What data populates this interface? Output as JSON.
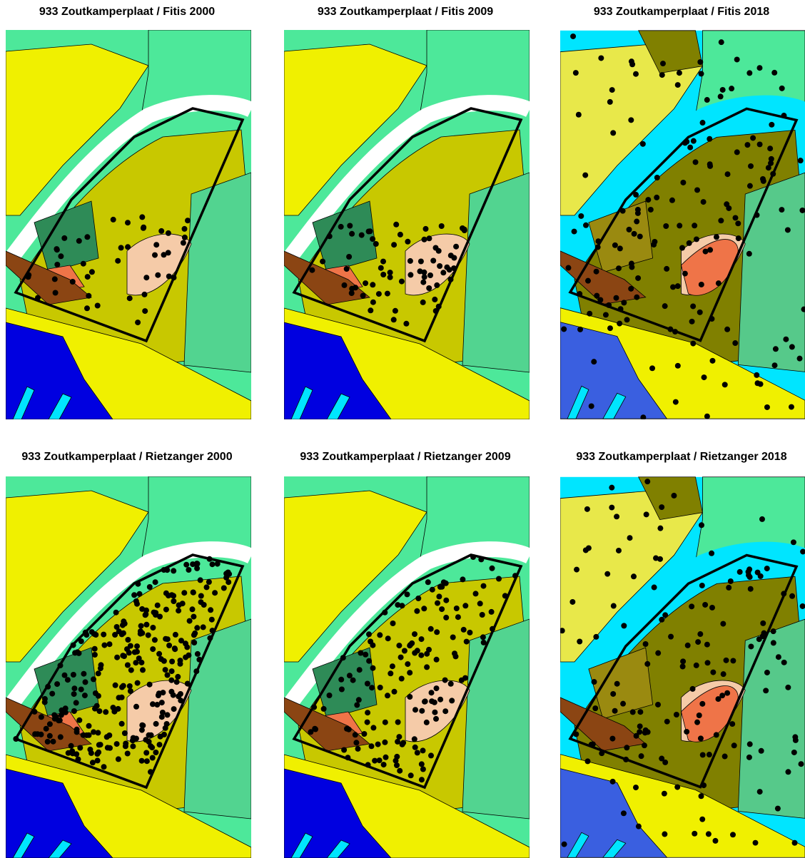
{
  "panels": [
    {
      "title": "933 Zoutkamperplaat / Fitis 2000"
    },
    {
      "title": "933 Zoutkamperplaat / Fitis 2009"
    },
    {
      "title": "933 Zoutkamperplaat / Fitis 2018"
    },
    {
      "title": "933 Zoutkamperplaat / Rietzanger 2000"
    },
    {
      "title": "933 Zoutkamperplaat / Rietzanger 2009"
    },
    {
      "title": "933 Zoutkamperplaat / Rietzanger 2018"
    }
  ]
}
